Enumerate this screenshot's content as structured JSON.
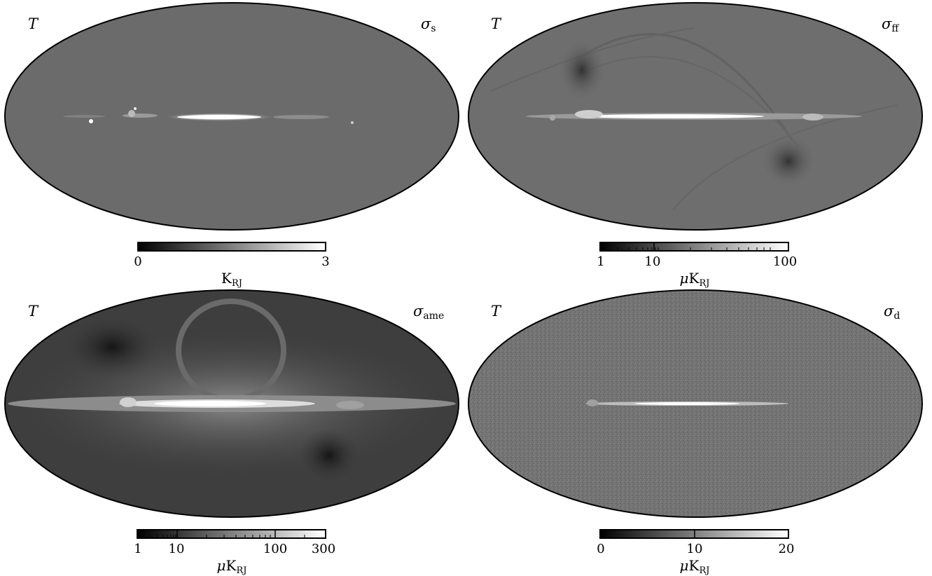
{
  "panels": [
    {
      "stokes": "T",
      "component_symbol": "σ",
      "component_sub": "s",
      "colorbar_ticks": [
        "0",
        "3"
      ],
      "unit_prefix": "",
      "unit_main": "K",
      "unit_sub": "RJ",
      "scale": "linear"
    },
    {
      "stokes": "T",
      "component_symbol": "σ",
      "component_sub": "ff",
      "colorbar_ticks": [
        "1",
        "10",
        "100"
      ],
      "unit_prefix": "μ",
      "unit_main": "K",
      "unit_sub": "RJ",
      "scale": "log"
    },
    {
      "stokes": "T",
      "component_symbol": "σ",
      "component_sub": "ame",
      "colorbar_ticks": [
        "1",
        "10",
        "100",
        "300"
      ],
      "unit_prefix": "μ",
      "unit_main": "K",
      "unit_sub": "RJ",
      "scale": "log"
    },
    {
      "stokes": "T",
      "component_symbol": "σ",
      "component_sub": "d",
      "colorbar_ticks": [
        "0",
        "10",
        "20"
      ],
      "unit_prefix": "μ",
      "unit_main": "K",
      "unit_sub": "RJ",
      "scale": "linear"
    }
  ],
  "colors": {
    "map_bg_s": "#6b6b6b",
    "map_bg_ff": "#6e6e6e",
    "map_bg_ame": "#3e3e3e",
    "map_bg_d": "#747474"
  }
}
